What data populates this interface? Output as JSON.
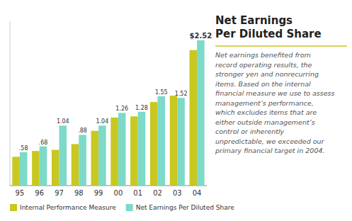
{
  "chart_data": {
    "type": "bar",
    "title": "Net Earnings\nPer Diluted Share",
    "annotations": [
      "Net earnings benefited from\nrecord operating results, the\nstronger yen and nonrecurring\nitems. Based on the internal\nfinancial measure we use to assess\nmanagement’s performance,\nwhich excludes items that are\neither outside management’s\ncontrol or inherently\nunpredictable, we exceeded our\nprimary financial target in 2004."
    ],
    "categories": [
      "95",
      "96",
      "97",
      "98",
      "99",
      "00",
      "01",
      "02",
      "03",
      "04"
    ],
    "series": [
      {
        "name": "Internal Performance Measure",
        "color": "#c8c820",
        "values": [
          0.5,
          0.6,
          0.62,
          0.72,
          0.95,
          1.18,
          1.2,
          1.45,
          1.56,
          2.35
        ]
      },
      {
        "name": "Net Earnings Per Diluted Share",
        "color": "#7dd9c8",
        "values": [
          0.58,
          0.68,
          1.04,
          0.88,
          1.04,
          1.26,
          1.28,
          1.55,
          1.52,
          2.52
        ],
        "value_labels": [
          ".58",
          ".68",
          "1.04",
          ".88",
          "1.04",
          "1.26",
          "1.28",
          "1.55",
          "1.52",
          "$2.52"
        ]
      }
    ],
    "ylim": [
      0,
      2.85
    ],
    "grid": false,
    "legend": "bottom",
    "data_labels": true,
    "tick_labels": "x"
  }
}
